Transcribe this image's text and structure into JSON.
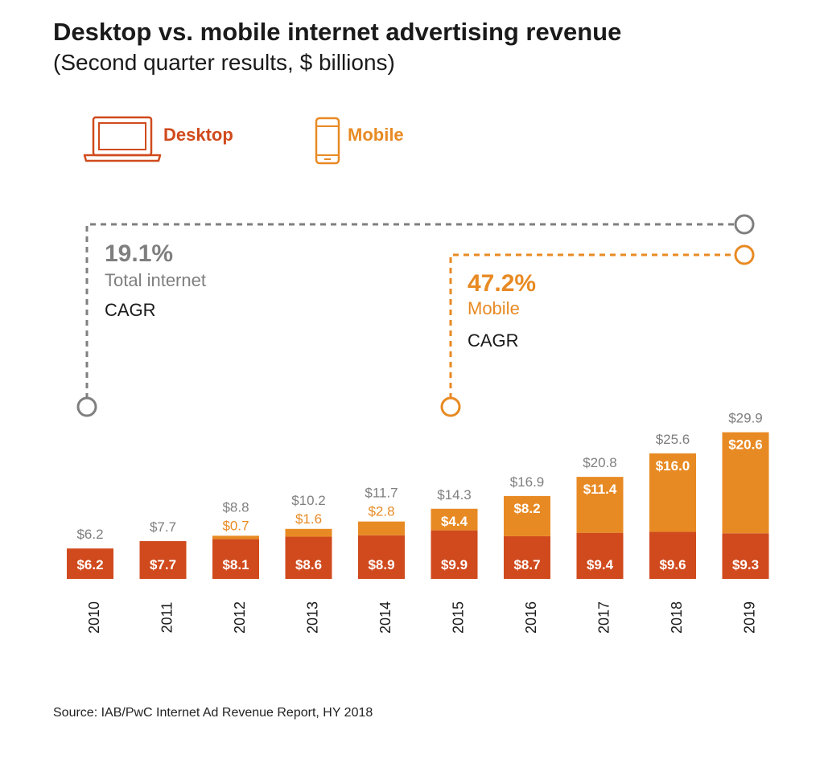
{
  "title": "Desktop vs. mobile internet advertising revenue",
  "subtitle": "(Second quarter results, $ billions)",
  "source": "Source: IAB/PwC Internet Ad Revenue Report, HY 2018",
  "legend": {
    "desktop": "Desktop",
    "mobile": "Mobile",
    "desktop_icon": "laptop-icon",
    "mobile_icon": "phone-icon"
  },
  "callouts": {
    "total": {
      "value": "19.1%",
      "label": "Total internet",
      "suffix": "CAGR"
    },
    "mobile": {
      "value": "47.2%",
      "label": "Mobile",
      "suffix": "CAGR"
    }
  },
  "colors": {
    "desktop": "#d04a1d",
    "mobile": "#e88a23",
    "total": "#7f7f7f",
    "text": "#1a1a1a"
  },
  "chart_data": {
    "type": "bar",
    "stacked": true,
    "categories": [
      "2010",
      "2011",
      "2012",
      "2013",
      "2014",
      "2015",
      "2016",
      "2017",
      "2018",
      "2019"
    ],
    "series": [
      {
        "name": "Desktop",
        "values": [
          6.2,
          7.7,
          8.1,
          8.6,
          8.9,
          9.9,
          8.7,
          9.4,
          9.6,
          9.3
        ]
      },
      {
        "name": "Mobile",
        "values": [
          0,
          0,
          0.7,
          1.6,
          2.8,
          4.4,
          8.2,
          11.4,
          16.0,
          20.6
        ]
      }
    ],
    "totals": [
      6.2,
      7.7,
      8.8,
      10.2,
      11.7,
      14.3,
      16.9,
      20.8,
      25.6,
      29.9
    ],
    "desktop_labels": [
      "$6.2",
      "$7.7",
      "$8.1",
      "$8.6",
      "$8.9",
      "$9.9",
      "$8.7",
      "$9.4",
      "$9.6",
      "$9.3"
    ],
    "mobile_labels": [
      "",
      "",
      "$0.7",
      "$1.6",
      "$2.8",
      "$4.4",
      "$8.2",
      "$11.4",
      "$16.0",
      "$20.6"
    ],
    "total_labels": [
      "$6.2",
      "$7.7",
      "$8.8",
      "$10.2",
      "$11.7",
      "$14.3",
      "$16.9",
      "$20.8",
      "$25.6",
      "$29.9"
    ],
    "ylim": [
      0,
      29.9
    ],
    "grid": false,
    "legend_position": "top-left"
  }
}
